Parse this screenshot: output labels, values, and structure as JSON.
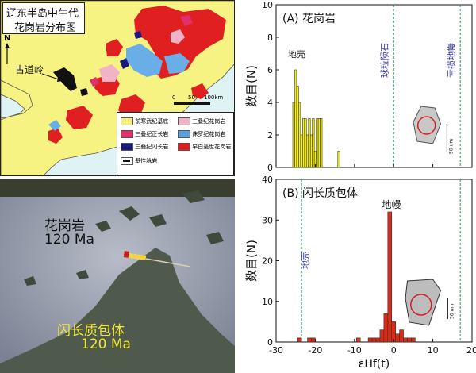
{
  "map": {
    "title_line1": "辽东半岛中生代",
    "title_line2": "花岗岩分布图",
    "north": "N",
    "fault_label": "古道岭",
    "scale_ticks": [
      "0",
      "50",
      "100km"
    ],
    "legend": [
      {
        "label": "前寒武纪基底",
        "color": "#f6f07a"
      },
      {
        "label": "三叠纪花岗岩",
        "color": "#f2b3c6"
      },
      {
        "label": "三叠纪正长岩",
        "color": "#e0306a"
      },
      {
        "label": "侏罗纪花岗岩",
        "color": "#5aa0e0"
      },
      {
        "label": "三叠纪闪长岩",
        "color": "#1a1a7a"
      },
      {
        "label": "早白垩世花岗岩",
        "color": "#e02020"
      },
      {
        "label": "基性脉岩",
        "color": "#111111"
      }
    ]
  },
  "photo": {
    "granite_name": "花岗岩",
    "granite_age": "120 Ma",
    "enclave_name": "闪长质包体",
    "enclave_age": "120 Ma"
  },
  "chart_data": [
    {
      "type": "bar",
      "panel": "(A) 花岗岩",
      "ylabel": "数目(N)",
      "x_range": [
        -30,
        20
      ],
      "ylim": [
        0,
        10
      ],
      "yticks": [
        0,
        2,
        4,
        6,
        8,
        10
      ],
      "bins": [
        {
          "x": -25.5,
          "count": 4
        },
        {
          "x": -25,
          "count": 6
        },
        {
          "x": -24.5,
          "count": 5
        },
        {
          "x": -24,
          "count": 4
        },
        {
          "x": -23.5,
          "count": 2
        },
        {
          "x": -23,
          "count": 3
        },
        {
          "x": -22.5,
          "count": 3
        },
        {
          "x": -22,
          "count": 2
        },
        {
          "x": -21.5,
          "count": 3
        },
        {
          "x": -21,
          "count": 2
        },
        {
          "x": -20.5,
          "count": 3
        },
        {
          "x": -20,
          "count": 1
        },
        {
          "x": -19.5,
          "count": 3
        },
        {
          "x": -19,
          "count": 3
        },
        {
          "x": -18.5,
          "count": 3
        },
        {
          "x": -14,
          "count": 1
        }
      ],
      "bin_width": 0.5,
      "bar_color": "#f5ef1a",
      "ref_lines": [
        {
          "x": 0,
          "label": "球粒陨石"
        },
        {
          "x": 17,
          "label": "亏损地幔"
        }
      ],
      "annotation": "地壳",
      "scale_text": "50 um"
    },
    {
      "type": "bar",
      "panel": "(B) 闪长质包体",
      "ylabel": "数目(N)",
      "xlabel": "εHf(t)",
      "x_range": [
        -30,
        20
      ],
      "xticks": [
        -30,
        -20,
        -10,
        0,
        10,
        20
      ],
      "ylim": [
        0,
        40
      ],
      "yticks": [
        0,
        10,
        20,
        30,
        40
      ],
      "bins": [
        {
          "x": -24,
          "count": 1
        },
        {
          "x": -21.5,
          "count": 1
        },
        {
          "x": -20.5,
          "count": 1
        },
        {
          "x": -9,
          "count": 1
        },
        {
          "x": -6,
          "count": 1
        },
        {
          "x": -5,
          "count": 1
        },
        {
          "x": -4,
          "count": 1
        },
        {
          "x": -3,
          "count": 3
        },
        {
          "x": -2,
          "count": 7
        },
        {
          "x": -1,
          "count": 32
        },
        {
          "x": 0,
          "count": 5
        },
        {
          "x": 1,
          "count": 2
        },
        {
          "x": 2,
          "count": 3
        },
        {
          "x": 3,
          "count": 1
        },
        {
          "x": 4,
          "count": 1
        },
        {
          "x": 5,
          "count": 1
        }
      ],
      "bin_width": 1,
      "bar_color": "#d92b1a",
      "ref_lines": [
        {
          "x": -23.5,
          "label": "地壳"
        },
        {
          "x": 17,
          "label": ""
        }
      ],
      "annotation": "地幔",
      "scale_text": "50 um"
    }
  ]
}
